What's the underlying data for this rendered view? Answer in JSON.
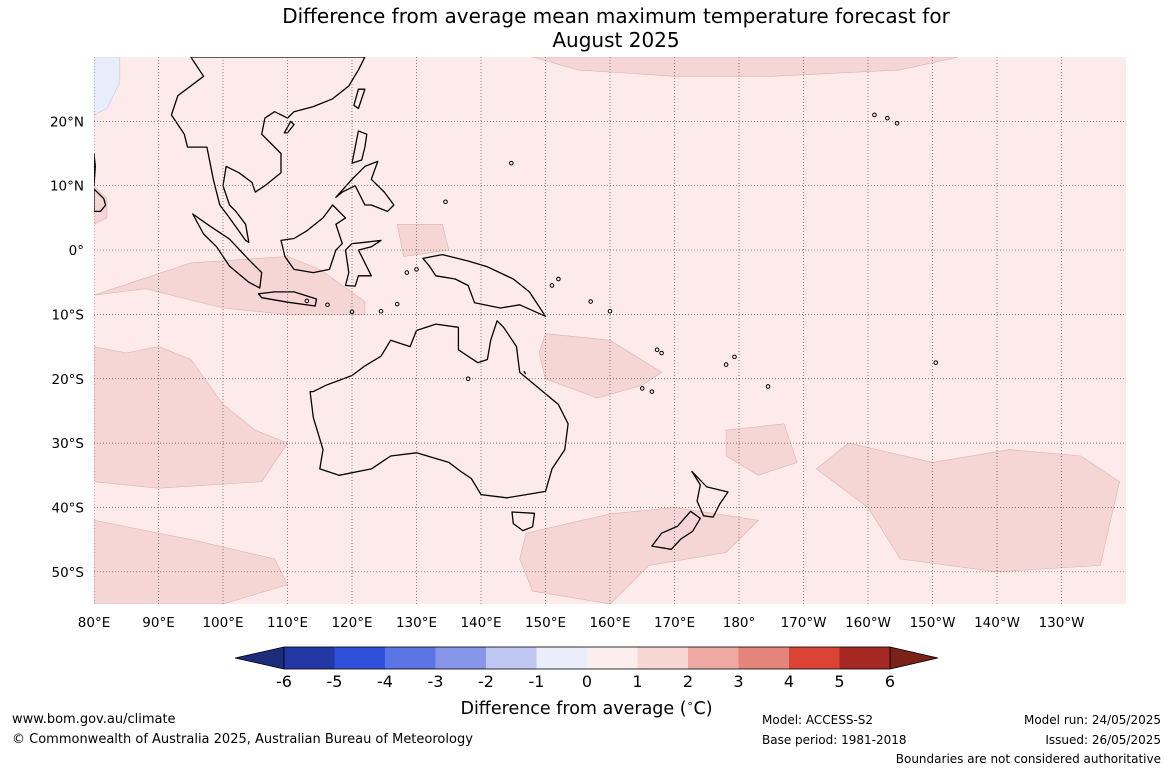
{
  "title": {
    "line1": "Difference from average mean maximum temperature forecast for",
    "line2": "August 2025"
  },
  "map": {
    "lon_range": [
      80,
      240
    ],
    "lat_range": [
      -55,
      30
    ],
    "lon_ticks": [
      {
        "value": 80,
        "label": "80°E"
      },
      {
        "value": 90,
        "label": "90°E"
      },
      {
        "value": 100,
        "label": "100°E"
      },
      {
        "value": 110,
        "label": "110°E"
      },
      {
        "value": 120,
        "label": "120°E"
      },
      {
        "value": 130,
        "label": "130°E"
      },
      {
        "value": 140,
        "label": "140°E"
      },
      {
        "value": 150,
        "label": "150°E"
      },
      {
        "value": 160,
        "label": "160°E"
      },
      {
        "value": 170,
        "label": "170°E"
      },
      {
        "value": 180,
        "label": "180°"
      },
      {
        "value": 190,
        "label": "170°W"
      },
      {
        "value": 200,
        "label": "160°W"
      },
      {
        "value": 210,
        "label": "150°W"
      },
      {
        "value": 220,
        "label": "140°W"
      },
      {
        "value": 230,
        "label": "130°W"
      }
    ],
    "lat_ticks": [
      {
        "value": 20,
        "label": "20°N"
      },
      {
        "value": 10,
        "label": "10°N"
      },
      {
        "value": 0,
        "label": "0°"
      },
      {
        "value": -10,
        "label": "10°S"
      },
      {
        "value": -20,
        "label": "20°S"
      },
      {
        "value": -30,
        "label": "30°S"
      },
      {
        "value": -40,
        "label": "40°S"
      },
      {
        "value": -50,
        "label": "50°S"
      }
    ],
    "background_color": "#fcebea",
    "anomaly_1_2_color": "#f6d6d4",
    "anomaly_neg_color": "#e8ecfb",
    "grid": true
  },
  "colorbar": {
    "ticks": [
      "-6",
      "-5",
      "-4",
      "-3",
      "-2",
      "-1",
      "0",
      "1",
      "2",
      "3",
      "4",
      "5",
      "6"
    ],
    "colors": [
      "#2337a5",
      "#3050dc",
      "#5b75e4",
      "#8796ea",
      "#c0c7f2",
      "#eaeefb",
      "#fdeeee",
      "#f8d6d4",
      "#eeaaa2",
      "#e5847a",
      "#db4335",
      "#a52822"
    ],
    "under_color": "#1c2b7a",
    "over_color": "#7a2218",
    "label": "Difference from average (",
    "unit_symbol": "∘",
    "unit_letter": "C",
    "label_end": ")"
  },
  "footer": {
    "website": "www.bom.gov.au/climate",
    "copyright": "© Commonwealth of Australia 2025, Australian Bureau of Meteorology",
    "model": "Model: ACCESS-S2",
    "base_period": "Base period: 1981-2018",
    "model_run": "Model run: 24/05/2025",
    "issued": "Issued: 26/05/2025",
    "disclaimer": "Boundaries are not considered authoritative"
  }
}
